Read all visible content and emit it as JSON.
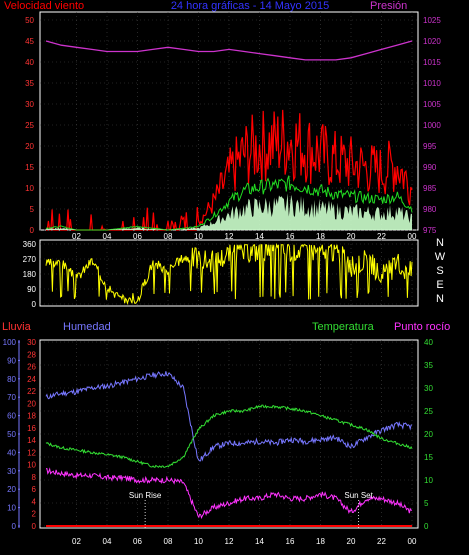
{
  "chart_data": [
    {
      "type": "line",
      "panel": "wind_pressure",
      "title": "24 hora gráficas - 14 Mayo 2015",
      "left_label": "Velocidad viento",
      "right_label": "Presión",
      "left_ticks": [
        "0",
        "5",
        "10",
        "15",
        "20",
        "25",
        "30",
        "35",
        "40",
        "45",
        "50"
      ],
      "right_ticks": [
        "975",
        "980",
        "985",
        "990",
        "995",
        "1000",
        "1005",
        "1010",
        "1015",
        "1020",
        "1025"
      ],
      "x_ticks": [
        "02",
        "04",
        "06",
        "08",
        "10",
        "12",
        "14",
        "16",
        "18",
        "20",
        "22",
        "00"
      ],
      "ylim_left": [
        0,
        50
      ],
      "ylim_right": [
        975,
        1025
      ],
      "x": [
        0,
        1,
        2,
        3,
        4,
        5,
        6,
        7,
        8,
        9,
        10,
        11,
        12,
        13,
        14,
        15,
        16,
        17,
        18,
        19,
        20,
        21,
        22,
        23,
        24
      ],
      "series": [
        {
          "name": "Velocidad viento",
          "color": "#ff0000",
          "values": [
            1,
            2,
            0,
            0,
            0,
            1,
            2,
            1,
            0,
            1,
            2,
            8,
            16,
            22,
            24,
            25,
            26,
            24,
            22,
            20,
            19,
            18,
            17,
            19,
            12
          ]
        },
        {
          "name": "Presión",
          "color": "#cc33cc",
          "values": [
            1020,
            1019,
            1018.5,
            1018,
            1017.5,
            1017.5,
            1017.5,
            1018,
            1018.5,
            1018,
            1017.5,
            1017.5,
            1018,
            1017.5,
            1017,
            1016.5,
            1016,
            1015.5,
            1015.5,
            1015.5,
            1016,
            1017,
            1018,
            1019,
            1020
          ]
        }
      ]
    },
    {
      "type": "line",
      "panel": "wind_direction",
      "left_ticks": [
        "0",
        "90",
        "180",
        "270",
        "360"
      ],
      "right_labels": [
        "N",
        "W",
        "S",
        "E",
        "N"
      ],
      "ylim": [
        0,
        360
      ],
      "x": [
        0,
        1,
        2,
        3,
        4,
        5,
        6,
        7,
        8,
        9,
        10,
        11,
        12,
        13,
        14,
        15,
        16,
        17,
        18,
        19,
        20,
        21,
        22,
        23,
        24
      ],
      "series": [
        {
          "color": "#ffff00",
          "values": [
            240,
            250,
            150,
            260,
            110,
            20,
            20,
            250,
            200,
            280,
            260,
            240,
            290,
            300,
            310,
            320,
            310,
            320,
            300,
            310,
            200,
            260,
            150,
            220,
            180
          ]
        }
      ]
    },
    {
      "type": "line",
      "panel": "humidity_temp",
      "left_label": "Lluvia",
      "left_label2": "Humedad",
      "right_label": "Temperatura",
      "right_label2": "Punto rocío",
      "rain_ticks": [
        "0",
        "2",
        "4",
        "6",
        "8",
        "10",
        "12",
        "14",
        "16",
        "18",
        "20",
        "22",
        "24",
        "26",
        "28",
        "30"
      ],
      "humidity_ticks": [
        "0",
        "10",
        "20",
        "30",
        "40",
        "50",
        "60",
        "70",
        "80",
        "90",
        "100"
      ],
      "temp_ticks": [
        "0",
        "5",
        "10",
        "15",
        "20",
        "25",
        "30",
        "35",
        "40"
      ],
      "x_ticks": [
        "02",
        "04",
        "06",
        "08",
        "10",
        "12",
        "14",
        "16",
        "18",
        "20",
        "22",
        "00"
      ],
      "annotations": [
        "Sun Rise",
        "Sun Set"
      ],
      "x": [
        0,
        1,
        2,
        3,
        4,
        5,
        6,
        7,
        8,
        9,
        10,
        11,
        12,
        13,
        14,
        15,
        16,
        17,
        18,
        19,
        20,
        21,
        22,
        23,
        24
      ],
      "series": [
        {
          "name": "Humedad",
          "color": "#7777ff",
          "ylim": [
            0,
            100
          ],
          "values": [
            70,
            72,
            73,
            75,
            76,
            78,
            80,
            82,
            83,
            75,
            35,
            43,
            45,
            45,
            46,
            45,
            47,
            46,
            47,
            48,
            43,
            48,
            52,
            55,
            54
          ]
        },
        {
          "name": "Temperatura",
          "color": "#33dd33",
          "ylim": [
            0,
            40
          ],
          "values": [
            18,
            17,
            16.5,
            16,
            15.5,
            15,
            14,
            13,
            13,
            15,
            21,
            24,
            25,
            25,
            26,
            26,
            25.5,
            25,
            24,
            23,
            22,
            21,
            19,
            18,
            17
          ]
        },
        {
          "name": "Punto rocío",
          "color": "#ff33ff",
          "ylim": [
            0,
            40
          ],
          "values": [
            12,
            11.5,
            11,
            11,
            10.5,
            10.5,
            10,
            10,
            10,
            9.5,
            2,
            4,
            5,
            6,
            6,
            7,
            6,
            6,
            7,
            6,
            3,
            6,
            6,
            5,
            3
          ]
        },
        {
          "name": "Lluvia",
          "color": "#ff0000",
          "ylim": [
            0,
            30
          ],
          "values": [
            0,
            0,
            0,
            0,
            0,
            0,
            0,
            0,
            0,
            0,
            0,
            0,
            0,
            0,
            0,
            0,
            0,
            0,
            0,
            0,
            0,
            0,
            0,
            0,
            0
          ]
        }
      ]
    }
  ]
}
